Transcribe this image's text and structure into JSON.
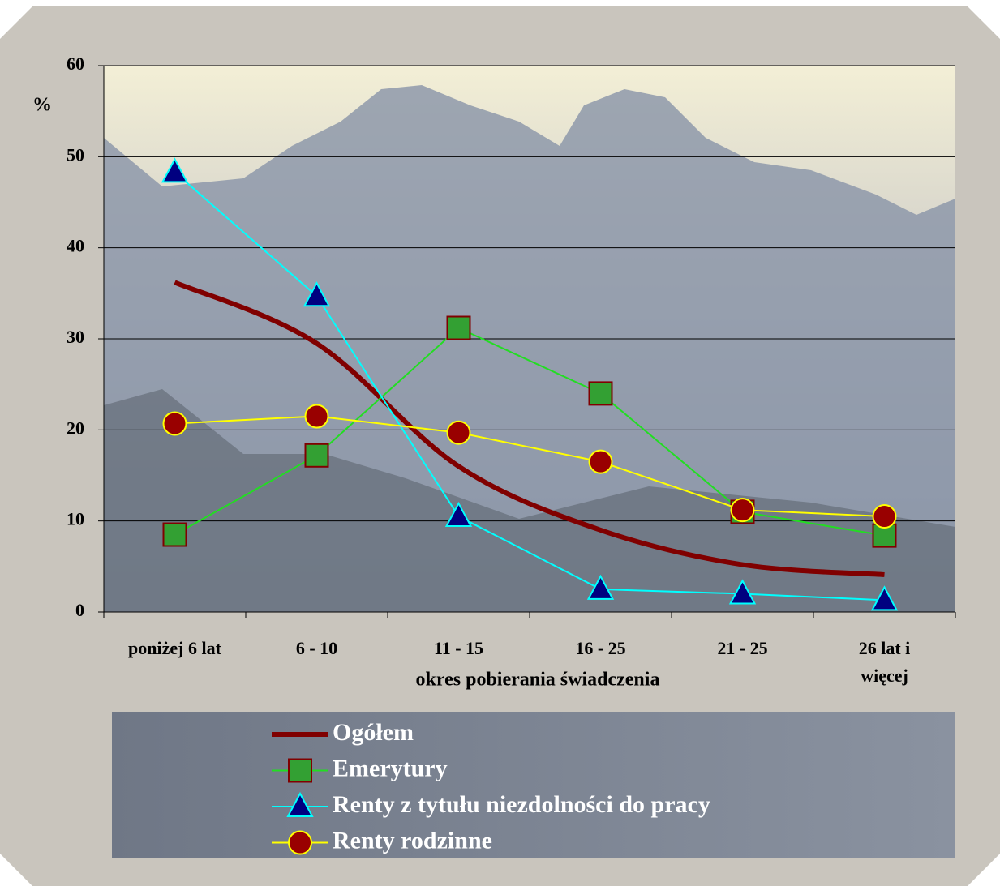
{
  "chart_data": {
    "type": "line",
    "categories": [
      "poniżej 6 lat",
      "6 - 10",
      "11 - 15",
      "16 - 25",
      "21 - 25",
      "26 lat i\nwięcej"
    ],
    "series": [
      {
        "name": "Ogółem",
        "color": "#800000",
        "marker": "none",
        "smooth": true,
        "values": [
          36.2,
          29.5,
          16.0,
          9.0,
          5.2,
          4.1
        ]
      },
      {
        "name": "Emerytury",
        "color": "#22dd22",
        "marker": "square",
        "marker_fill": "#33a033",
        "marker_stroke": "#800000",
        "values": [
          8.5,
          17.2,
          31.2,
          24.0,
          11.0,
          8.4
        ]
      },
      {
        "name": "Renty z tytułu niezdolności do pracy",
        "color": "#00ffff",
        "marker": "triangle",
        "marker_fill": "#000080",
        "marker_stroke": "#00ffff",
        "values": [
          48.3,
          34.7,
          10.5,
          2.5,
          2.0,
          1.3
        ]
      },
      {
        "name": "Renty rodzinne",
        "color": "#ffff00",
        "marker": "circle",
        "marker_fill": "#990000",
        "marker_stroke": "#ffff00",
        "values": [
          20.7,
          21.5,
          19.7,
          16.5,
          11.2,
          10.5
        ]
      }
    ],
    "y_label": "%",
    "x_label": "okres pobierania świadczenia",
    "ylim": [
      0,
      60
    ],
    "yticks": [
      0,
      10,
      20,
      30,
      40,
      50,
      60
    ],
    "grid": true
  }
}
